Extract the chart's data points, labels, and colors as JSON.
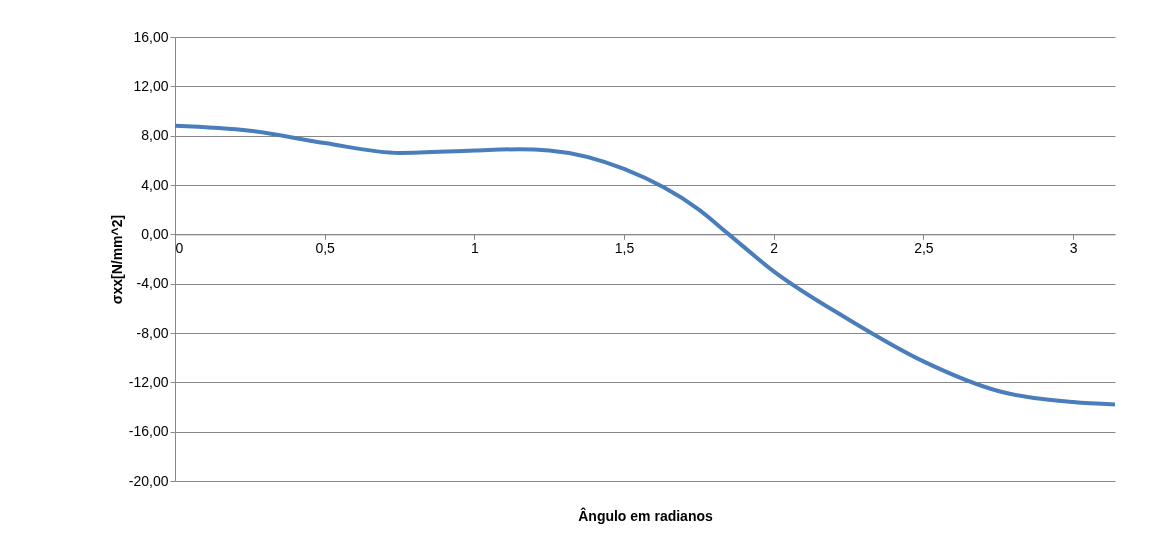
{
  "chart_data": {
    "type": "line",
    "xlabel": "Ângulo em radianos",
    "ylabel": "σxx[N/mm^2]",
    "x": [
      0,
      0.25,
      0.5,
      0.75,
      1,
      1.15,
      1.25,
      1.5,
      1.75,
      1.85,
      2,
      2.25,
      2.5,
      2.75,
      3,
      3.14
    ],
    "series": [
      {
        "color": "#4a7ebb",
        "values": [
          8.8,
          8.4,
          7.4,
          6.6,
          6.8,
          6.9,
          6.8,
          5.3,
          2.0,
          0,
          -3.0,
          -6.9,
          -10.3,
          -12.7,
          -13.6,
          -13.8
        ]
      }
    ],
    "xlim": [
      0,
      3.14
    ],
    "xticks": [
      0,
      {
        "value": 0.5,
        "label": "0,5"
      },
      1,
      {
        "value": 1.5,
        "label": "1,5"
      },
      2,
      {
        "value": 2.5,
        "label": "2,5"
      },
      3
    ],
    "ylim": [
      -20,
      16
    ],
    "yticks": [
      {
        "value": 16,
        "label": "16,00"
      },
      {
        "value": 12,
        "label": "12,00"
      },
      {
        "value": 8,
        "label": "8,00"
      },
      {
        "value": 4,
        "label": "4,00"
      },
      {
        "value": 0,
        "label": "0,00"
      },
      {
        "value": -4,
        "label": "-4,00"
      },
      {
        "value": -8,
        "label": "-8,00"
      },
      {
        "value": -12,
        "label": "-12,00"
      },
      {
        "value": -16,
        "label": "-16,00"
      },
      {
        "value": -20,
        "label": "-20,00"
      }
    ],
    "grid": "y",
    "marker": "none",
    "line_style": "solid"
  }
}
